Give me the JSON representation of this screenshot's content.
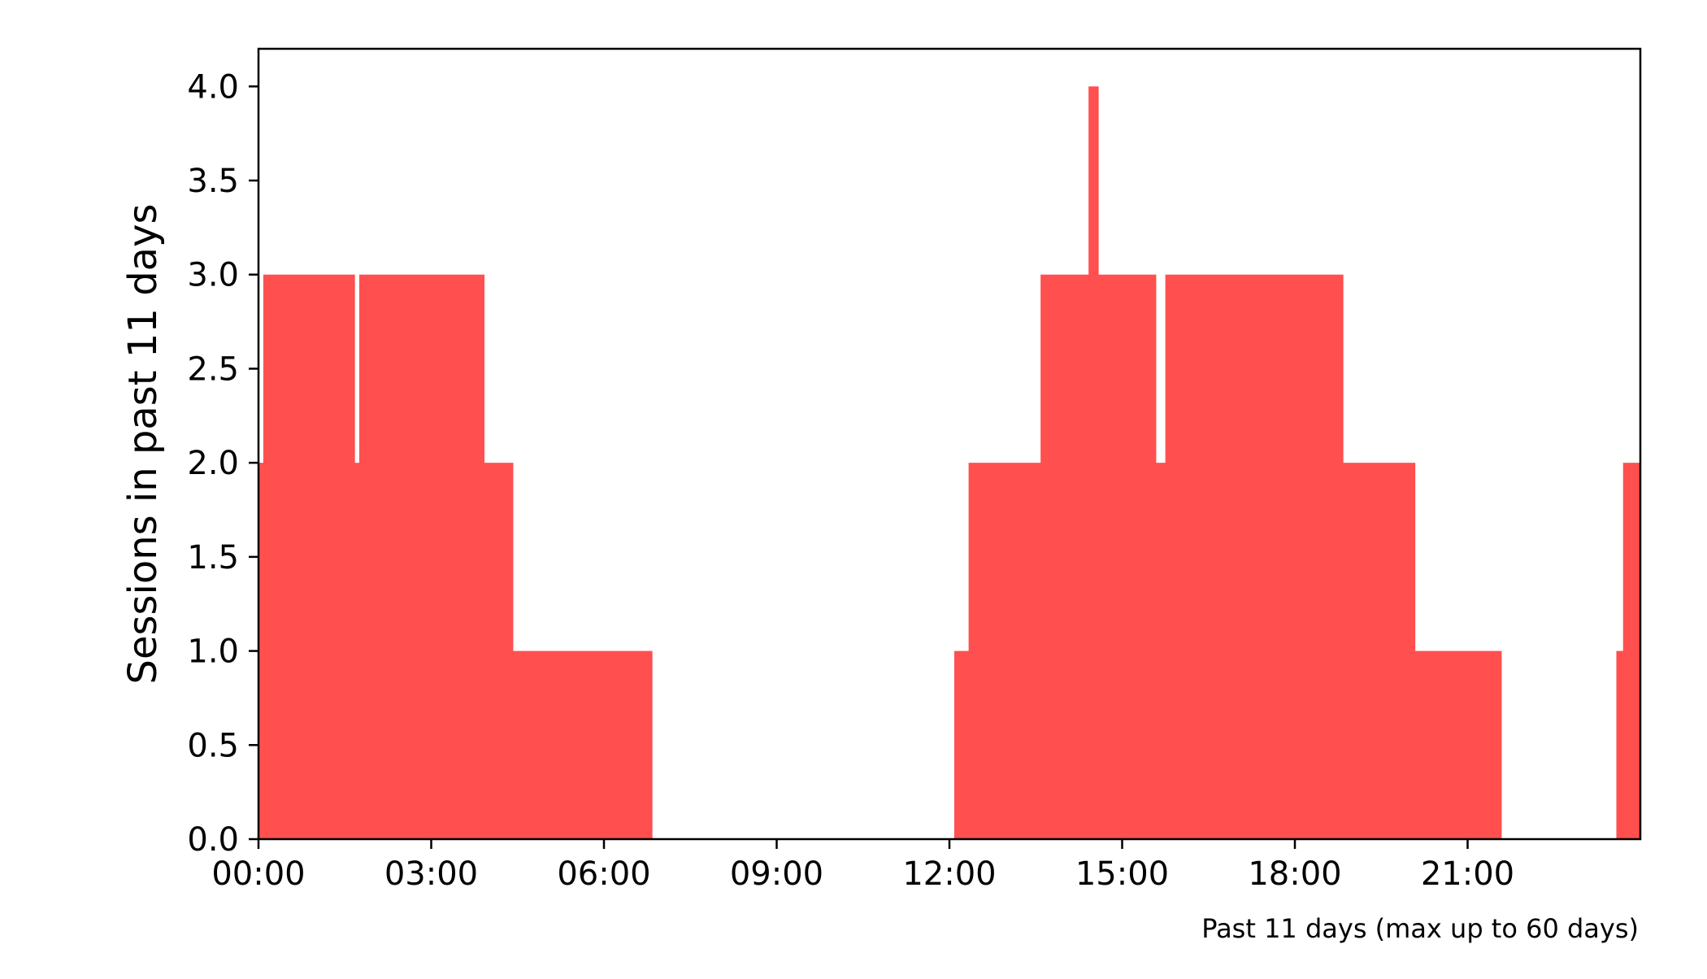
{
  "chart_data": {
    "type": "area",
    "title": "",
    "xlabel": "",
    "ylabel": "Sessions in past 11 days",
    "footnote": "Past 11 days (max up to 60 days)",
    "bar_color": "#ff4f4f",
    "xlim": [
      "00:00",
      "24:00"
    ],
    "ylim": [
      0,
      4.2
    ],
    "x_ticks": [
      "00:00",
      "03:00",
      "06:00",
      "09:00",
      "12:00",
      "15:00",
      "18:00",
      "21:00"
    ],
    "y_ticks": [
      "0.0",
      "0.5",
      "1.0",
      "1.5",
      "2.0",
      "2.5",
      "3.0",
      "3.5",
      "4.0"
    ],
    "grid": false,
    "legend": "none",
    "series": [
      {
        "segments": [
          {
            "start": "00:00",
            "end": "00:05",
            "value": 2
          },
          {
            "start": "00:05",
            "end": "01:40",
            "value": 3
          },
          {
            "start": "01:40",
            "end": "01:45",
            "value": 2
          },
          {
            "start": "01:45",
            "end": "03:55",
            "value": 3
          },
          {
            "start": "03:55",
            "end": "04:25",
            "value": 2
          },
          {
            "start": "04:25",
            "end": "06:50",
            "value": 1
          },
          {
            "start": "12:05",
            "end": "12:20",
            "value": 1
          },
          {
            "start": "12:20",
            "end": "13:35",
            "value": 2
          },
          {
            "start": "13:35",
            "end": "14:25",
            "value": 3
          },
          {
            "start": "14:25",
            "end": "14:35",
            "value": 4
          },
          {
            "start": "14:35",
            "end": "15:35",
            "value": 3
          },
          {
            "start": "15:35",
            "end": "15:45",
            "value": 2
          },
          {
            "start": "15:45",
            "end": "18:50",
            "value": 3
          },
          {
            "start": "18:50",
            "end": "20:05",
            "value": 2
          },
          {
            "start": "20:05",
            "end": "21:35",
            "value": 1
          },
          {
            "start": "23:35",
            "end": "23:42",
            "value": 1
          },
          {
            "start": "23:42",
            "end": "24:00",
            "value": 2
          }
        ]
      }
    ]
  }
}
